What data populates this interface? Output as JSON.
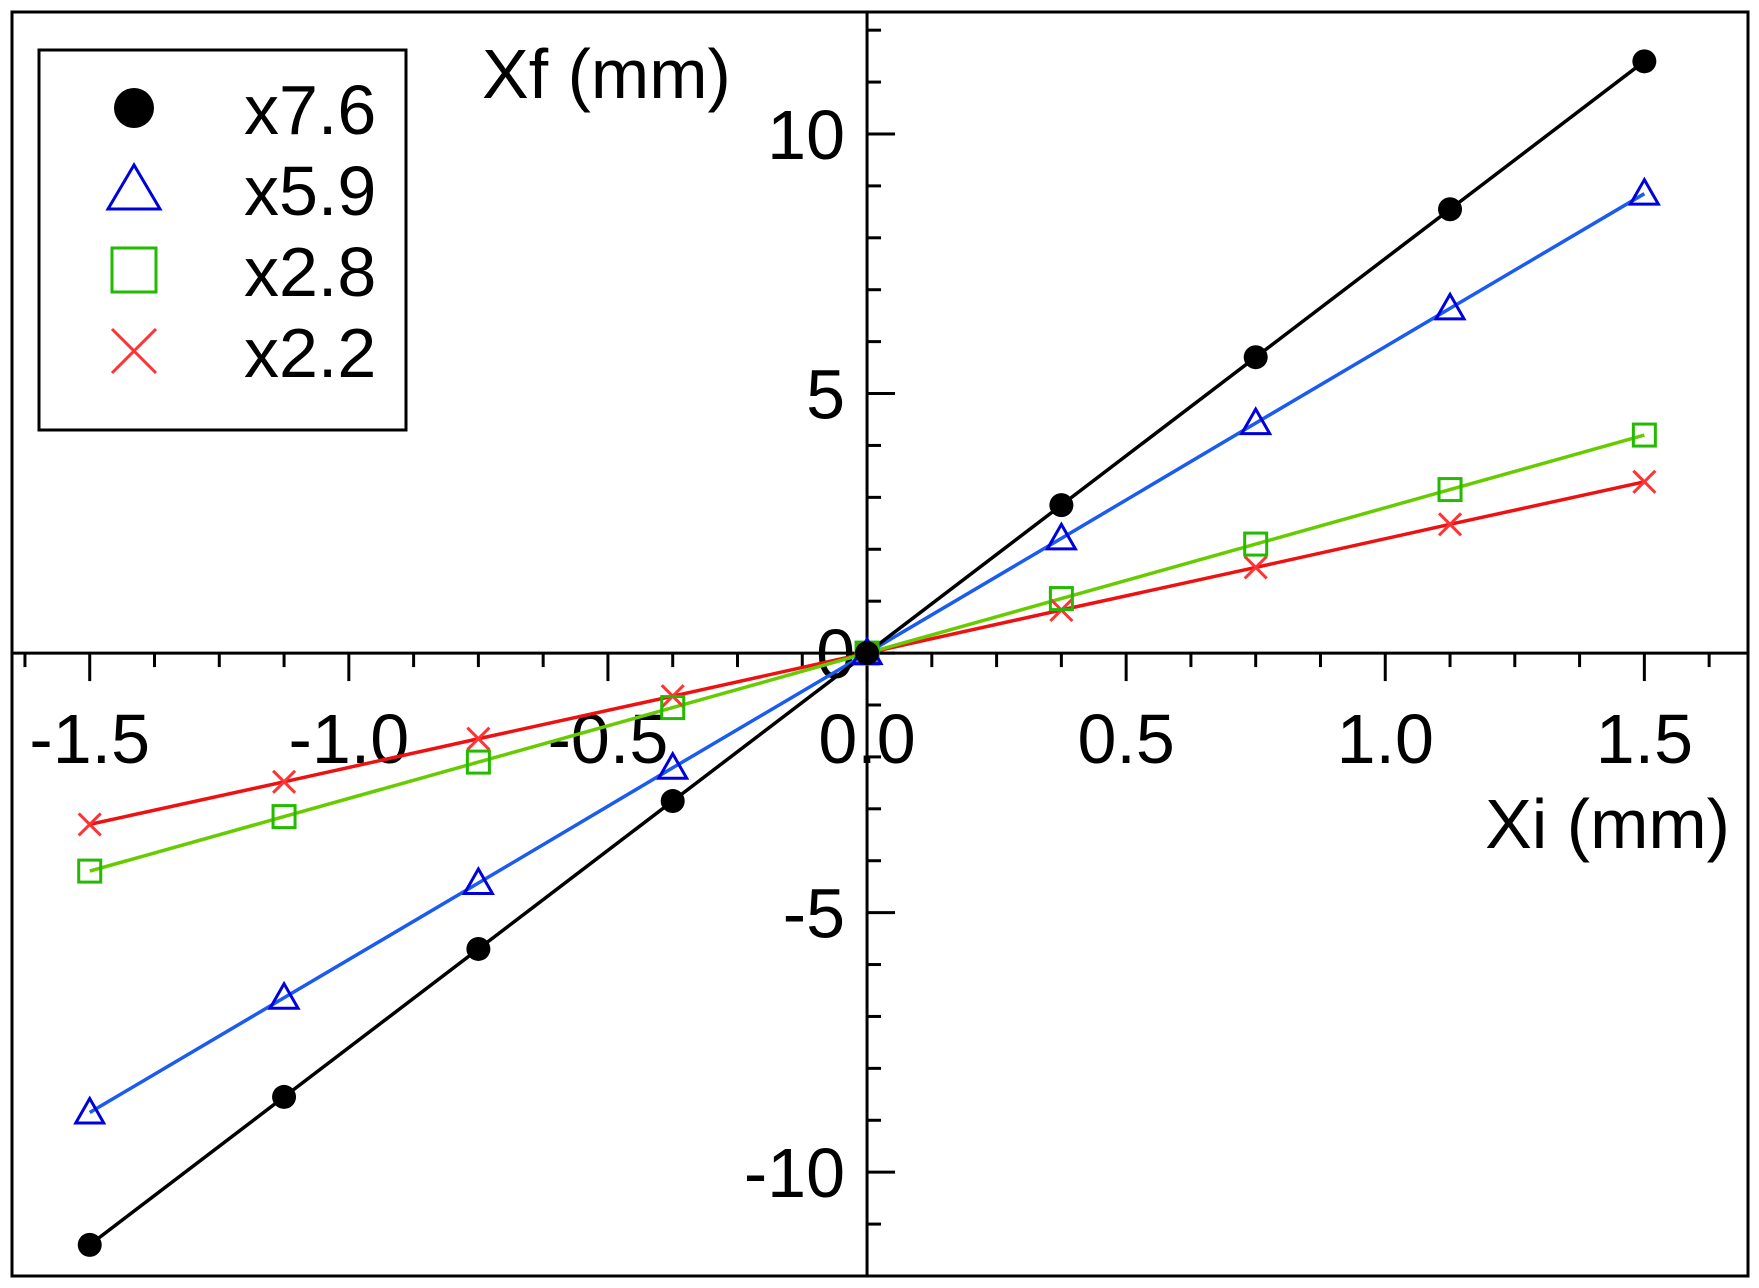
{
  "chart_data": {
    "type": "scatter",
    "title": "",
    "xlabel": "Xi (mm)",
    "ylabel": "Xf (mm)",
    "xlim": [
      -1.65,
      1.7
    ],
    "ylim": [
      -12,
      12.35
    ],
    "xticks": [
      -1.5,
      -1.0,
      -0.5,
      0.0,
      0.5,
      1.0,
      1.5
    ],
    "xtick_labels": [
      "-1.5",
      "-1.0",
      "-0.5",
      "0.0",
      "0.5",
      "1.0",
      "1.5"
    ],
    "yticks": [
      -10,
      -5,
      0,
      5,
      10
    ],
    "ytick_labels": [
      "-10",
      "-5",
      "0",
      "5",
      "10"
    ],
    "grid": false,
    "legend_position": "top-left",
    "x": [
      -1.5,
      -1.125,
      -0.75,
      -0.375,
      0.0,
      0.375,
      0.75,
      1.125,
      1.5
    ],
    "series": [
      {
        "name": "x7.6",
        "marker": "filled-circle",
        "color": "#000000",
        "values": [
          -11.4,
          -8.55,
          -5.7,
          -2.85,
          0.0,
          2.85,
          5.7,
          8.55,
          11.4
        ]
      },
      {
        "name": "x5.9",
        "marker": "open-triangle",
        "color": "#1a5cf0",
        "marker_color": "#0000dd",
        "values": [
          -8.85,
          -6.64,
          -4.43,
          -2.21,
          0.0,
          2.21,
          4.43,
          6.64,
          8.85
        ]
      },
      {
        "name": "x2.8",
        "marker": "open-square",
        "color": "#66cc00",
        "marker_color": "#22bb00",
        "values": [
          -4.2,
          -3.15,
          -2.1,
          -1.05,
          0.0,
          1.05,
          2.1,
          3.15,
          4.2
        ]
      },
      {
        "name": "x2.2",
        "marker": "cross",
        "color": "#ee1111",
        "marker_color": "#ff3333",
        "values": [
          -3.3,
          -2.48,
          -1.65,
          -0.83,
          0.0,
          0.83,
          1.65,
          2.48,
          3.3
        ]
      }
    ]
  }
}
